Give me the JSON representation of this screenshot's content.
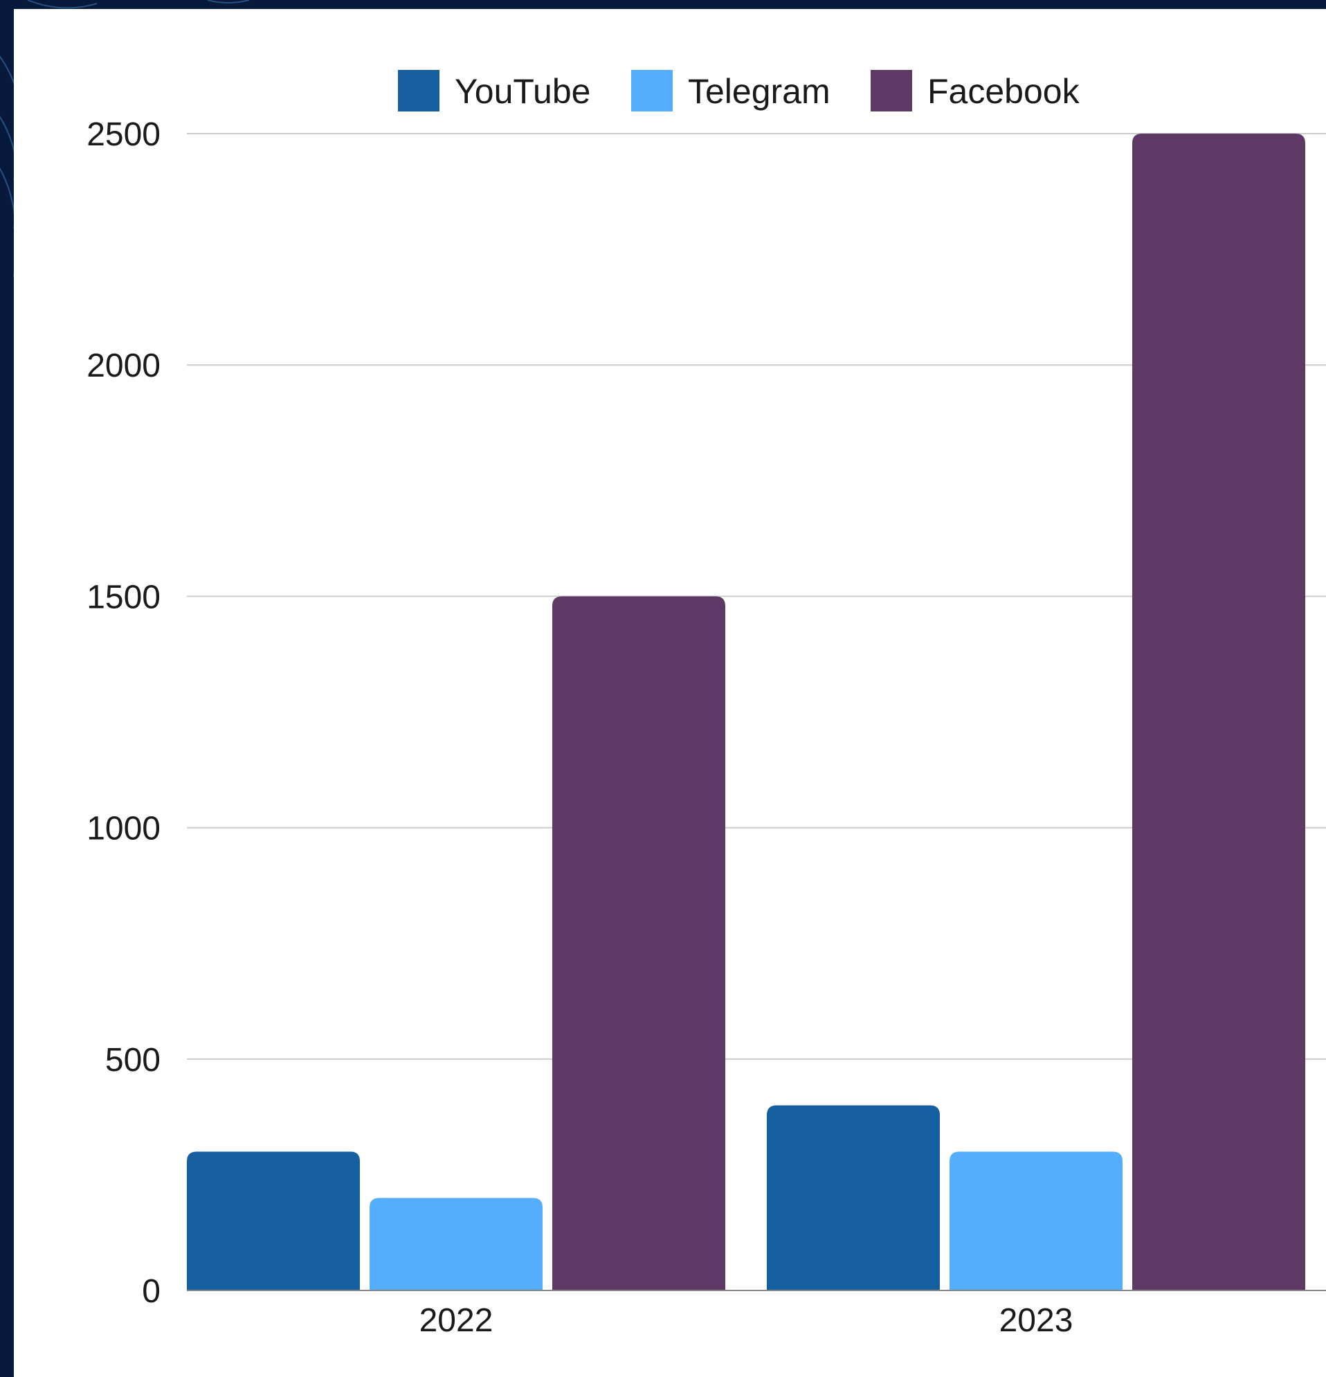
{
  "chart_data": {
    "type": "bar",
    "categories": [
      "2022",
      "2023"
    ],
    "series": [
      {
        "name": "YouTube",
        "color": "#155fa0",
        "values": [
          300,
          400
        ]
      },
      {
        "name": "Telegram",
        "color": "#55adfd",
        "values": [
          200,
          300
        ]
      },
      {
        "name": "Facebook",
        "color": "#5e3966",
        "values": [
          1500,
          2500
        ]
      }
    ],
    "yticks": [
      "0",
      "500",
      "1000",
      "1500",
      "2000",
      "2500"
    ],
    "ylim": [
      0,
      2500
    ],
    "grid": true,
    "legend_position": "top"
  },
  "colors": {
    "background": "#071a3c",
    "panel": "#ffffff",
    "grid": "#cccccc"
  }
}
